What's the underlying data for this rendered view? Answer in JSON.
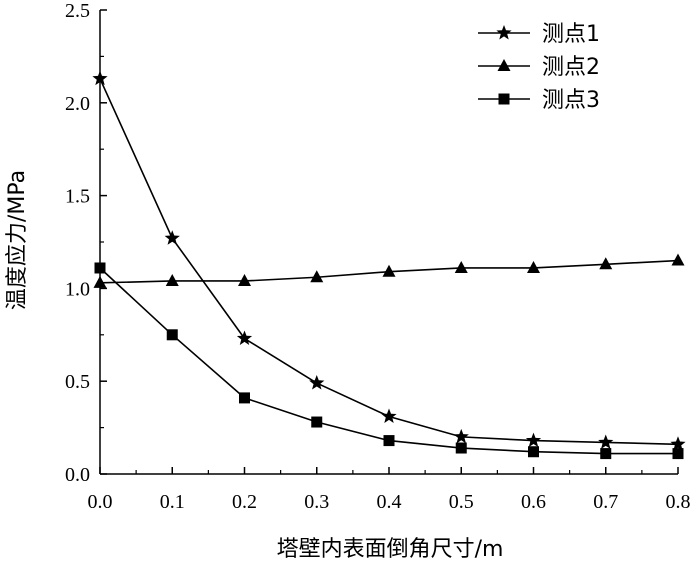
{
  "chart_data": {
    "type": "line",
    "xlabel": "塔壁内表面倒角尺寸/m",
    "ylabel": "温度应力/MPa",
    "xlim": [
      0.0,
      0.8
    ],
    "ylim": [
      0.0,
      2.5
    ],
    "x": [
      0.0,
      0.1,
      0.2,
      0.3,
      0.4,
      0.5,
      0.6,
      0.7,
      0.8
    ],
    "x_ticks": [
      "0.0",
      "0.1",
      "0.2",
      "0.3",
      "0.4",
      "0.5",
      "0.6",
      "0.7",
      "0.8"
    ],
    "y_ticks": [
      "0.0",
      "0.5",
      "1.0",
      "1.5",
      "2.0",
      "2.5"
    ],
    "grid": false,
    "legend_position": "top-right",
    "series": [
      {
        "name": "测点1",
        "marker": "star",
        "values": [
          2.13,
          1.27,
          0.73,
          0.49,
          0.31,
          0.2,
          0.18,
          0.17,
          0.16
        ]
      },
      {
        "name": "测点2",
        "marker": "triangle",
        "values": [
          1.03,
          1.04,
          1.04,
          1.06,
          1.09,
          1.11,
          1.11,
          1.13,
          1.15
        ]
      },
      {
        "name": "测点3",
        "marker": "square",
        "values": [
          1.11,
          0.75,
          0.41,
          0.28,
          0.18,
          0.14,
          0.12,
          0.11,
          0.11
        ]
      }
    ]
  }
}
